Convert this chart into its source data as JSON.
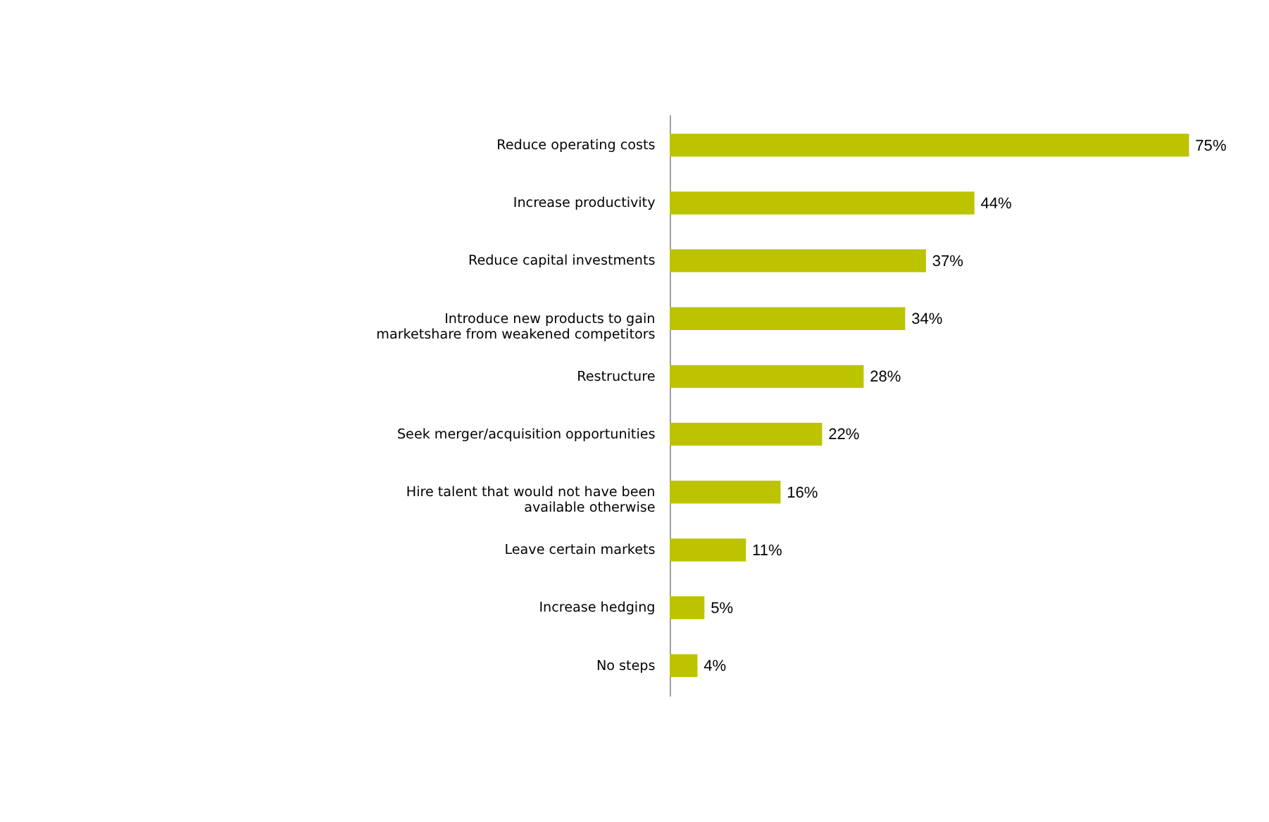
{
  "chart_data": {
    "type": "bar",
    "orientation": "horizontal",
    "color": "#bcc400",
    "categories": [
      "Reduce operating costs",
      "Increase productivity",
      "Reduce capital investments",
      "Introduce new products to gain marketshare from weakened competitors",
      "Restructure",
      "Seek merger/acquisition opportunities",
      "Hire talent that would not have been available otherwise",
      "Leave certain markets",
      "Increase hedging",
      "No steps"
    ],
    "values": [
      75,
      44,
      37,
      34,
      28,
      22,
      16,
      11,
      5,
      4
    ],
    "value_labels": [
      "75%",
      "44%",
      "37%",
      "34%",
      "28%",
      "22%",
      "16%",
      "11%",
      "5%",
      "4%"
    ]
  }
}
